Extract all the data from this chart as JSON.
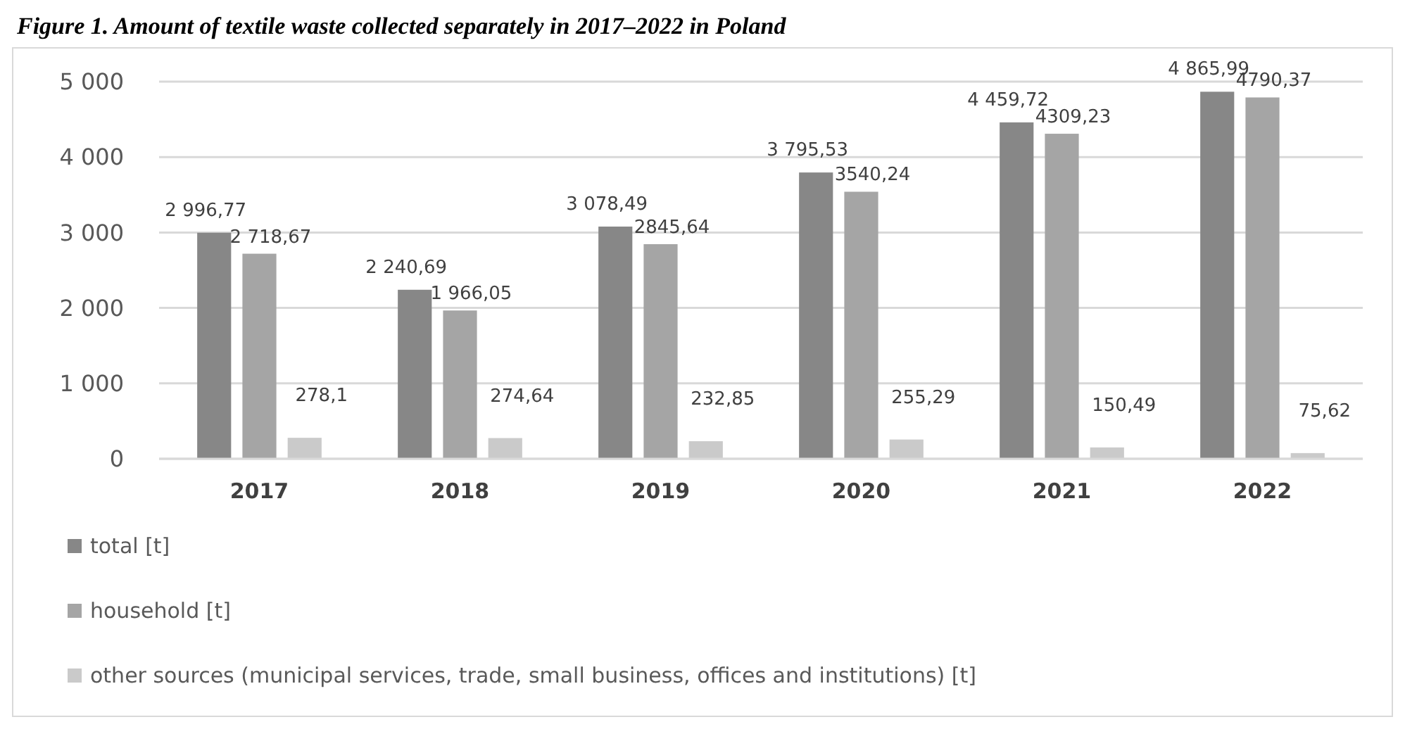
{
  "chart_data": {
    "type": "bar",
    "title": "Figure 1. Amount of textile waste collected separately in 2017–2022 in Poland",
    "categories": [
      "2017",
      "2018",
      "2019",
      "2020",
      "2021",
      "2022"
    ],
    "series": [
      {
        "name": "total [t]",
        "color": "#878787",
        "values": [
          2996.77,
          2240.69,
          3078.49,
          3795.53,
          4459.72,
          4865.99
        ],
        "value_labels": [
          "2 996,77",
          "2 240,69",
          "3 078,49",
          "3 795,53",
          "4 459,72",
          "4 865,99"
        ]
      },
      {
        "name": "household [t]",
        "color": "#a5a5a5",
        "values": [
          2718.67,
          1966.05,
          2845.64,
          3540.24,
          4309.23,
          4790.37
        ],
        "value_labels": [
          "2 718,67",
          "1 966,05",
          "2845,64",
          "3540,24",
          "4309,23",
          "4790,37"
        ]
      },
      {
        "name": "other sources (municipal services, trade, small business, offices and institutions) [t]",
        "color": "#cacaca",
        "values": [
          278.1,
          274.64,
          232.85,
          255.29,
          150.49,
          75.62
        ],
        "value_labels": [
          "278,1",
          "274,64",
          "232,85",
          "255,29",
          "150,49",
          "75,62"
        ]
      }
    ],
    "ylim": [
      0,
      5000
    ],
    "yticks": [
      {
        "value": 0,
        "label": "0"
      },
      {
        "value": 1000,
        "label": "1 000"
      },
      {
        "value": 2000,
        "label": "2 000"
      },
      {
        "value": 3000,
        "label": "3 000"
      },
      {
        "value": 4000,
        "label": "4 000"
      },
      {
        "value": 5000,
        "label": "5 000"
      }
    ],
    "grid": "y",
    "legend": "bottom"
  }
}
